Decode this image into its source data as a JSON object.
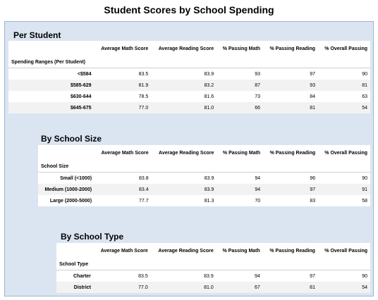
{
  "title": "Student Scores by School Spending",
  "sections": [
    {
      "heading": "Per Student",
      "index_label": "Spending Ranges (Per Student)",
      "columns": [
        "Average Math Score",
        "Average Reading Score",
        "% Passing Math",
        "% Passing Reading",
        "% Overall Passing"
      ],
      "rows": [
        {
          "label": "<$584",
          "values": [
            "83.5",
            "83.9",
            "93",
            "97",
            "90"
          ]
        },
        {
          "label": "$585-629",
          "values": [
            "81.9",
            "83.2",
            "87",
            "93",
            "81"
          ]
        },
        {
          "label": "$630-644",
          "values": [
            "78.5",
            "81.6",
            "73",
            "84",
            "63"
          ]
        },
        {
          "label": "$645-675",
          "values": [
            "77.0",
            "81.0",
            "66",
            "81",
            "54"
          ]
        }
      ]
    },
    {
      "heading": "By School Size",
      "index_label": "School Size",
      "columns": [
        "Average Math Score",
        "Average Reading Score",
        "% Passing Math",
        "% Passing Reading",
        "% Overall Passing"
      ],
      "rows": [
        {
          "label": "Small (<1000)",
          "values": [
            "83.8",
            "83.9",
            "94",
            "96",
            "90"
          ]
        },
        {
          "label": "Medium (1000-2000)",
          "values": [
            "83.4",
            "83.9",
            "94",
            "97",
            "91"
          ]
        },
        {
          "label": "Large (2000-5000)",
          "values": [
            "77.7",
            "81.3",
            "70",
            "83",
            "58"
          ]
        }
      ]
    },
    {
      "heading": "By School Type",
      "index_label": "School Type",
      "columns": [
        "Average Math Score",
        "Average Reading Score",
        "% Passing Math",
        "% Passing Reading",
        "% Overall Passing"
      ],
      "rows": [
        {
          "label": "Charter",
          "values": [
            "83.5",
            "83.9",
            "94",
            "97",
            "90"
          ]
        },
        {
          "label": "District",
          "values": [
            "77.0",
            "81.0",
            "67",
            "81",
            "54"
          ]
        }
      ]
    }
  ]
}
